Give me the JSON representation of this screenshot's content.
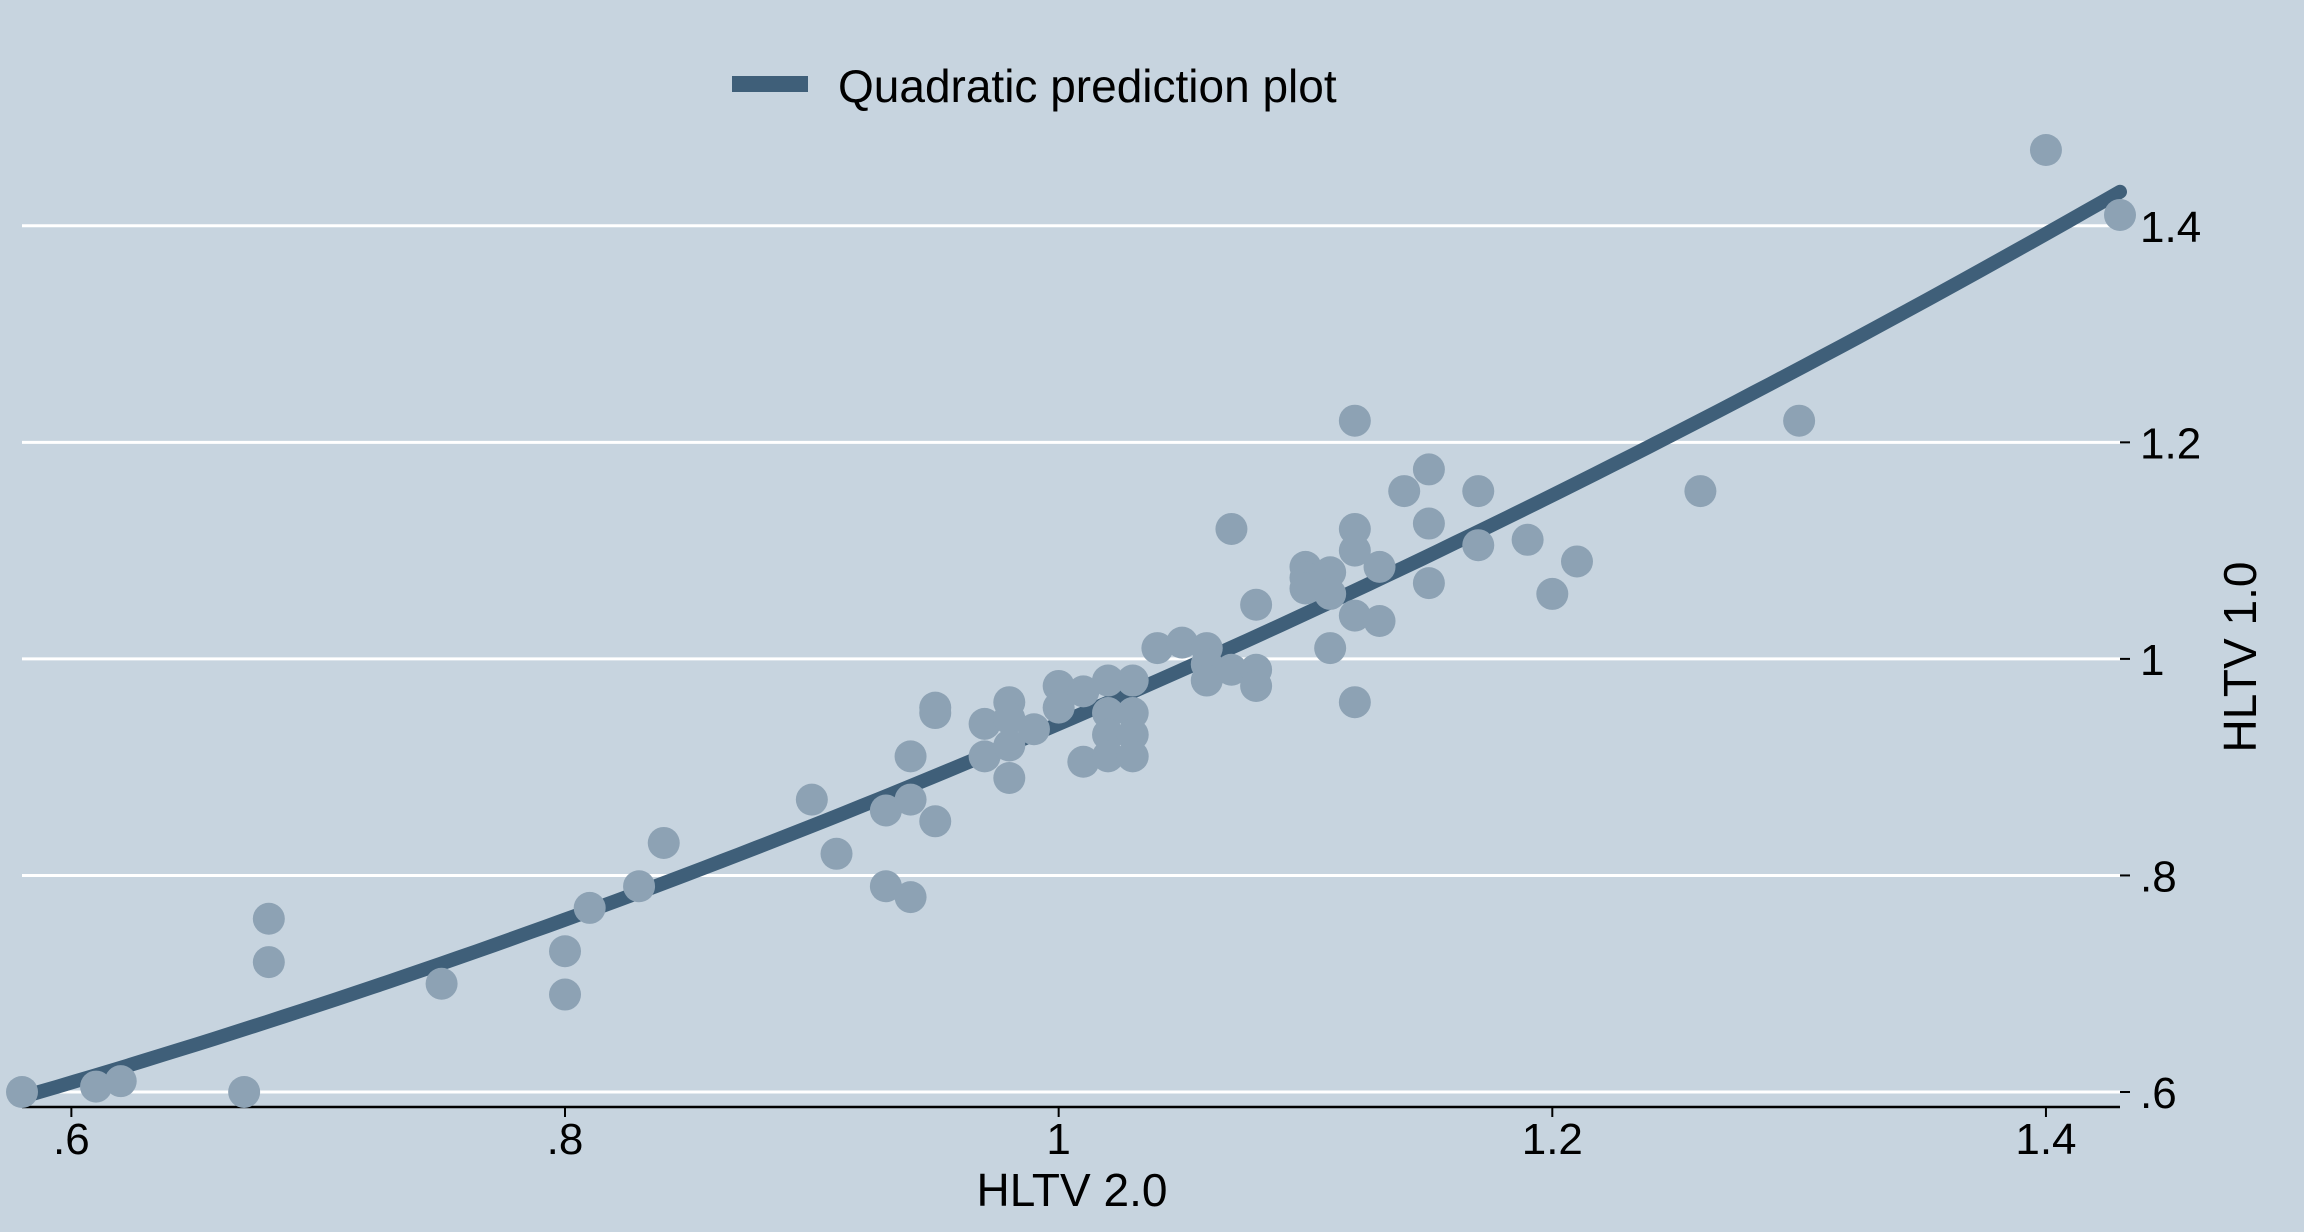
{
  "chart_data": {
    "type": "scatter",
    "xlabel": "HLTV 2.0",
    "ylabel": "HLTV 1.0",
    "xlim": [
      0.58,
      1.43
    ],
    "ylim": [
      0.6,
      1.47
    ],
    "x_ticks": [
      0.6,
      0.8,
      1.0,
      1.2,
      1.4
    ],
    "x_tick_labels": [
      ".6",
      ".8",
      "1",
      "1.2",
      "1.4"
    ],
    "y_ticks": [
      0.6,
      0.8,
      1.0,
      1.2,
      1.4
    ],
    "y_tick_labels": [
      ".6",
      ".8",
      "1",
      "1.2",
      "1.4"
    ],
    "y_axis_side": "right",
    "grid": "horizontal",
    "legend": {
      "position": "top-center",
      "entries": [
        "Quadratic prediction plot"
      ]
    },
    "colors": {
      "background": "#c7d4df",
      "fit_line": "#3f5f79",
      "points": "#8da2b4",
      "grid": "#ffffff"
    },
    "series": [
      {
        "kind": "points",
        "points": [
          [
            0.58,
            0.6
          ],
          [
            0.61,
            0.605
          ],
          [
            0.62,
            0.61
          ],
          [
            0.67,
            0.6
          ],
          [
            0.68,
            0.76
          ],
          [
            0.68,
            0.72
          ],
          [
            0.75,
            0.7
          ],
          [
            0.8,
            0.73
          ],
          [
            0.8,
            0.69
          ],
          [
            0.81,
            0.77
          ],
          [
            0.83,
            0.79
          ],
          [
            0.84,
            0.83
          ],
          [
            0.9,
            0.87
          ],
          [
            0.91,
            0.82
          ],
          [
            0.93,
            0.86
          ],
          [
            0.93,
            0.79
          ],
          [
            0.94,
            0.91
          ],
          [
            0.94,
            0.87
          ],
          [
            0.94,
            0.78
          ],
          [
            0.95,
            0.95
          ],
          [
            0.95,
            0.955
          ],
          [
            0.95,
            0.85
          ],
          [
            0.97,
            0.94
          ],
          [
            0.97,
            0.91
          ],
          [
            0.98,
            0.96
          ],
          [
            0.98,
            0.945
          ],
          [
            0.98,
            0.92
          ],
          [
            0.98,
            0.89
          ],
          [
            0.99,
            0.935
          ],
          [
            1.0,
            0.975
          ],
          [
            1.0,
            0.955
          ],
          [
            1.01,
            0.97
          ],
          [
            1.01,
            0.905
          ],
          [
            1.02,
            0.98
          ],
          [
            1.02,
            0.95
          ],
          [
            1.02,
            0.93
          ],
          [
            1.02,
            0.91
          ],
          [
            1.03,
            0.98
          ],
          [
            1.03,
            0.95
          ],
          [
            1.03,
            0.93
          ],
          [
            1.03,
            0.91
          ],
          [
            1.04,
            1.01
          ],
          [
            1.05,
            1.015
          ],
          [
            1.06,
            1.01
          ],
          [
            1.06,
            0.995
          ],
          [
            1.06,
            0.98
          ],
          [
            1.07,
            1.12
          ],
          [
            1.07,
            0.99
          ],
          [
            1.08,
            1.05
          ],
          [
            1.08,
            0.99
          ],
          [
            1.08,
            0.975
          ],
          [
            1.1,
            1.085
          ],
          [
            1.1,
            1.075
          ],
          [
            1.1,
            1.065
          ],
          [
            1.11,
            1.08
          ],
          [
            1.11,
            1.06
          ],
          [
            1.11,
            1.01
          ],
          [
            1.12,
            1.22
          ],
          [
            1.12,
            1.12
          ],
          [
            1.12,
            1.1
          ],
          [
            1.12,
            1.04
          ],
          [
            1.12,
            0.96
          ],
          [
            1.13,
            1.085
          ],
          [
            1.13,
            1.035
          ],
          [
            1.14,
            1.155
          ],
          [
            1.15,
            1.175
          ],
          [
            1.15,
            1.125
          ],
          [
            1.15,
            1.07
          ],
          [
            1.17,
            1.155
          ],
          [
            1.17,
            1.105
          ],
          [
            1.19,
            1.11
          ],
          [
            1.2,
            1.06
          ],
          [
            1.21,
            1.09
          ],
          [
            1.26,
            1.155
          ],
          [
            1.3,
            1.22
          ],
          [
            1.4,
            1.47
          ],
          [
            1.43,
            1.41
          ]
        ]
      },
      {
        "kind": "line",
        "name": "Quadratic prediction plot",
        "fit": "quadratic"
      }
    ]
  }
}
